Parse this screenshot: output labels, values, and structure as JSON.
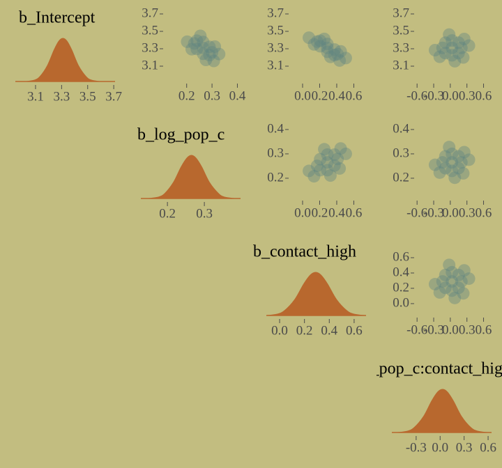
{
  "chart_data": [
    {
      "type": "density",
      "title": "b_Intercept",
      "color": "#b8682e",
      "x": [
        3.03,
        3.089,
        3.132,
        3.191,
        3.242,
        3.28,
        3.31,
        3.34,
        3.378,
        3.429,
        3.489,
        3.531,
        3.59
      ],
      "values": [
        0,
        0.03,
        0.11,
        0.37,
        0.73,
        0.94,
        1,
        0.94,
        0.73,
        0.37,
        0.11,
        0.03,
        0
      ],
      "xlim": [
        2.945,
        3.71
      ],
      "xticks": [
        3.1,
        3.3,
        3.5,
        3.7
      ],
      "ylim": [
        0,
        1
      ]
    },
    {
      "type": "scatter",
      "color": "#5e8580",
      "x": [
        0.265,
        0.3,
        0.23,
        0.265,
        0.265,
        0.29,
        0.24,
        0.29,
        0.24,
        0.328,
        0.202,
        0.276,
        0.254,
        0.311,
        0.22,
        0.307
      ],
      "values": [
        3.31,
        3.259,
        3.361,
        3.378,
        3.242,
        3.322,
        3.298,
        3.227,
        3.393,
        3.239,
        3.381,
        3.172,
        3.448,
        3.325,
        3.295,
        3.16
      ],
      "xlim": [
        0.11,
        0.44
      ],
      "xticks": [
        0.2,
        0.3,
        0.4
      ],
      "ylim": [
        2.916,
        3.764
      ],
      "yticks": [
        3.1,
        3.3,
        3.5,
        3.7
      ]
    },
    {
      "type": "scatter",
      "color": "#5e8580",
      "x": [
        0.29,
        0.41,
        0.17,
        0.29,
        0.29,
        0.374,
        0.206,
        0.374,
        0.206,
        0.506,
        0.074,
        0.326,
        0.254,
        0.446,
        0.134,
        0.434
      ],
      "values": [
        3.31,
        3.238,
        3.382,
        3.355,
        3.265,
        3.291,
        3.329,
        3.228,
        3.392,
        3.193,
        3.427,
        3.207,
        3.413,
        3.27,
        3.35,
        3.165
      ],
      "xlim": [
        -0.155,
        0.825
      ],
      "xticks": [
        {
          "value": 0,
          "label": "0.0"
        },
        0.2,
        0.4,
        0.6
      ],
      "ylim": [
        2.916,
        3.764
      ],
      "yticks": [
        3.1,
        3.3,
        3.5,
        3.7
      ]
    },
    {
      "type": "scatter",
      "color": "#5e8580",
      "x": [
        0.03,
        0.2,
        -0.14,
        0.03,
        0.03,
        0.149,
        -0.089,
        0.149,
        -0.089,
        0.336,
        -0.276,
        0.081,
        -0.021,
        0.251,
        -0.191,
        0.234
      ],
      "values": [
        3.31,
        3.31,
        3.31,
        3.395,
        3.225,
        3.37,
        3.25,
        3.25,
        3.37,
        3.336,
        3.284,
        3.157,
        3.463,
        3.412,
        3.208,
        3.2
      ],
      "xlim": [
        -0.64,
        0.87
      ],
      "xticks": [
        -0.6,
        -0.3,
        {
          "value": 0,
          "label": "0.0"
        },
        0.3,
        0.6
      ],
      "ylim": [
        2.916,
        3.764
      ],
      "yticks": [
        3.1,
        3.3,
        3.5,
        3.7
      ]
    },
    {
      "type": "density",
      "title": "b_log_pop_c",
      "color": "#b8682e",
      "x": [
        0.149,
        0.174,
        0.192,
        0.216,
        0.237,
        0.253,
        0.265,
        0.277,
        0.293,
        0.314,
        0.339,
        0.356,
        0.381
      ],
      "values": [
        0,
        0.03,
        0.11,
        0.37,
        0.73,
        0.94,
        1,
        0.94,
        0.73,
        0.37,
        0.11,
        0.03,
        0
      ],
      "xlim": [
        0.128,
        0.398
      ],
      "xticks": [
        0.2,
        0.3
      ],
      "ylim": [
        0,
        1
      ]
    },
    {
      "type": "scatter",
      "color": "#5e8580",
      "x": [
        0.29,
        0.41,
        0.17,
        0.29,
        0.29,
        0.374,
        0.206,
        0.374,
        0.206,
        0.506,
        0.074,
        0.326,
        0.254,
        0.446,
        0.134,
        0.434
      ],
      "values": [
        0.265,
        0.279,
        0.251,
        0.297,
        0.233,
        0.297,
        0.233,
        0.252,
        0.278,
        0.3,
        0.23,
        0.211,
        0.319,
        0.322,
        0.208,
        0.24
      ],
      "xlim": [
        -0.155,
        0.825
      ],
      "xticks": [
        {
          "value": 0,
          "label": "0.0"
        },
        0.2,
        0.4,
        0.6
      ],
      "ylim": [
        0.114,
        0.417
      ],
      "yticks": [
        0.2,
        0.3,
        0.4
      ]
    },
    {
      "type": "scatter",
      "color": "#5e8580",
      "x": [
        0.03,
        0.2,
        -0.14,
        0.03,
        0.03,
        0.149,
        -0.089,
        0.149,
        -0.089,
        0.336,
        -0.276,
        0.081,
        -0.021,
        0.251,
        -0.191,
        0.234
      ],
      "values": [
        0.265,
        0.265,
        0.265,
        0.3,
        0.23,
        0.29,
        0.241,
        0.241,
        0.29,
        0.276,
        0.255,
        0.202,
        0.328,
        0.307,
        0.223,
        0.22
      ],
      "xlim": [
        -0.64,
        0.87
      ],
      "xticks": [
        -0.6,
        -0.3,
        {
          "value": 0,
          "label": "0.0"
        },
        0.3,
        0.6
      ],
      "ylim": [
        0.114,
        0.417
      ],
      "yticks": [
        0.2,
        0.3,
        0.4
      ]
    },
    {
      "type": "density",
      "title": "b_contact_high",
      "color": "#b8682e",
      "x": [
        -0.106,
        -0.022,
        0.038,
        0.122,
        0.194,
        0.248,
        0.29,
        0.332,
        0.386,
        0.458,
        0.542,
        0.602,
        0.686
      ],
      "values": [
        0,
        0.03,
        0.11,
        0.37,
        0.73,
        0.94,
        1,
        0.94,
        0.73,
        0.37,
        0.11,
        0.03,
        0
      ],
      "xlim": [
        -0.107,
        0.696
      ],
      "xticks": [
        {
          "value": 0,
          "label": "0.0"
        },
        0.2,
        0.4,
        0.6
      ],
      "ylim": [
        0,
        1
      ]
    },
    {
      "type": "scatter",
      "color": "#5e8580",
      "x": [
        0.03,
        0.2,
        -0.14,
        0.03,
        0.03,
        0.149,
        -0.089,
        0.149,
        -0.089,
        0.336,
        -0.276,
        0.081,
        -0.021,
        0.251,
        -0.191,
        0.234
      ],
      "values": [
        0.29,
        0.29,
        0.29,
        0.41,
        0.17,
        0.374,
        0.206,
        0.206,
        0.374,
        0.326,
        0.254,
        0.074,
        0.506,
        0.434,
        0.146,
        0.134
      ],
      "xlim": [
        -0.64,
        0.87
      ],
      "xticks": [
        -0.6,
        -0.3,
        {
          "value": 0,
          "label": "0.0"
        },
        0.3,
        0.6
      ],
      "ylim": [
        -0.164,
        0.8
      ],
      "yticks": [
        {
          "value": 0,
          "label": "0.0"
        },
        0.2,
        0.4,
        0.6
      ]
    },
    {
      "type": "density",
      "title": "b_log_pop_c:contact_high",
      "color": "#b8682e",
      "x": [
        -0.531,
        -0.412,
        -0.327,
        -0.208,
        -0.106,
        -0.03,
        0.03,
        0.09,
        0.166,
        0.268,
        0.387,
        0.472,
        0.591
      ],
      "values": [
        0,
        0.03,
        0.11,
        0.37,
        0.73,
        0.94,
        1,
        0.94,
        0.73,
        0.37,
        0.11,
        0.03,
        0
      ],
      "xlim": [
        -0.604,
        0.643
      ],
      "xticks": [
        -0.3,
        {
          "value": 0,
          "label": "0.0"
        },
        0.3,
        0.6
      ],
      "ylim": [
        0,
        1
      ]
    }
  ]
}
